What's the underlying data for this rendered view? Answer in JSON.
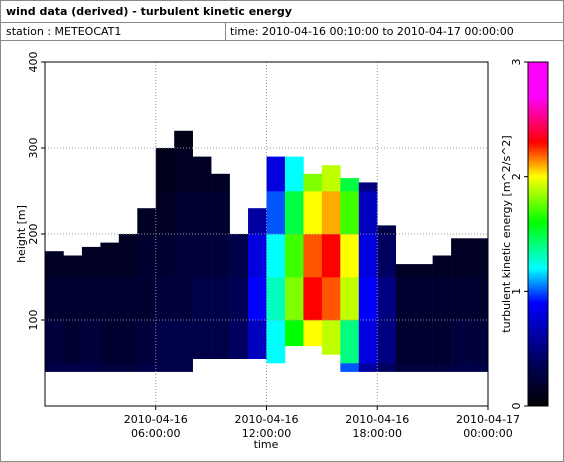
{
  "chart_data": {
    "type": "heatmap",
    "title": "wind data (derived) - turbulent kinetic energy",
    "station": "station : METEOCAT1",
    "time_range": "time: 2010-04-16 00:10:00 to 2010-04-17 00:00:00",
    "xlabel": "time",
    "ylabel": "height [m]",
    "colorbar_label": "turbulent kinetic energy [m^2/s^2]",
    "x": [
      0,
      1,
      2,
      3,
      4,
      5,
      6,
      7,
      8,
      9,
      10,
      11,
      12,
      13,
      14,
      15,
      16,
      17,
      18,
      19,
      20,
      21,
      22,
      23
    ],
    "bottom": [
      40,
      40,
      40,
      40,
      40,
      40,
      40,
      40,
      55,
      55,
      55,
      55,
      50,
      70,
      70,
      60,
      40,
      40,
      40,
      40,
      40,
      40,
      40,
      40
    ],
    "top": [
      180,
      175,
      185,
      190,
      200,
      230,
      300,
      320,
      290,
      270,
      200,
      230,
      290,
      290,
      270,
      280,
      265,
      260,
      210,
      165,
      165,
      175,
      195,
      195
    ],
    "rows": [
      0,
      50,
      100,
      150,
      200,
      250,
      300,
      350,
      400
    ],
    "values": [
      [
        0.3,
        0.25,
        0.2,
        0.15,
        null,
        null,
        null,
        null
      ],
      [
        0.3,
        0.2,
        0.2,
        0.15,
        null,
        null,
        null,
        null
      ],
      [
        0.3,
        0.25,
        0.2,
        0.15,
        null,
        null,
        null,
        null
      ],
      [
        0.25,
        0.2,
        0.2,
        0.15,
        null,
        null,
        null,
        null
      ],
      [
        0.25,
        0.2,
        0.2,
        0.15,
        null,
        null,
        null,
        null
      ],
      [
        0.3,
        0.25,
        0.2,
        0.2,
        0.15,
        null,
        null,
        null
      ],
      [
        0.3,
        0.3,
        0.25,
        0.2,
        0.15,
        0.1,
        null,
        null
      ],
      [
        0.3,
        0.3,
        0.25,
        0.25,
        0.2,
        0.15,
        0.1,
        null
      ],
      [
        0.3,
        0.3,
        0.3,
        0.25,
        0.2,
        0.15,
        null,
        null
      ],
      [
        0.35,
        0.3,
        0.3,
        0.25,
        0.2,
        0.15,
        null,
        null
      ],
      [
        0.4,
        0.4,
        0.35,
        0.3,
        null,
        null,
        null,
        null
      ],
      [
        0.6,
        0.7,
        0.9,
        0.8,
        0.6,
        null,
        null,
        null
      ],
      [
        0.9,
        1.2,
        1.3,
        1.2,
        1.0,
        0.8,
        null,
        null
      ],
      [
        1.3,
        1.6,
        1.8,
        1.7,
        1.5,
        1.2,
        null,
        null
      ],
      [
        1.5,
        2.0,
        2.3,
        2.2,
        2.0,
        1.8,
        null,
        null
      ],
      [
        1.4,
        1.9,
        2.2,
        2.3,
        2.1,
        1.9,
        null,
        null
      ],
      [
        1.0,
        1.4,
        1.9,
        2.0,
        1.7,
        1.5,
        null,
        null
      ],
      [
        0.6,
        0.8,
        0.9,
        0.8,
        0.7,
        0.5,
        null,
        null
      ],
      [
        0.4,
        0.5,
        0.5,
        0.4,
        0.3,
        null,
        null,
        null
      ],
      [
        0.25,
        0.2,
        0.2,
        0.15,
        null,
        null,
        null,
        null
      ],
      [
        0.25,
        0.2,
        0.2,
        0.15,
        null,
        null,
        null,
        null
      ],
      [
        0.25,
        0.2,
        0.2,
        0.15,
        null,
        null,
        null,
        null
      ],
      [
        0.3,
        0.25,
        0.2,
        0.15,
        null,
        null,
        null,
        null
      ],
      [
        0.3,
        0.25,
        0.2,
        0.15,
        null,
        null,
        null,
        null
      ]
    ],
    "xlim": [
      0,
      24
    ],
    "xticks": [
      {
        "value": 6,
        "label": "2010-04-16 06:00:00"
      },
      {
        "value": 12,
        "label": "2010-04-16 12:00:00"
      },
      {
        "value": 18,
        "label": "2010-04-16 18:00:00"
      },
      {
        "value": 24,
        "label": "2010-04-17 00:00:00"
      }
    ],
    "ylim": [
      0,
      400
    ],
    "yticks": [
      100,
      200,
      300,
      400
    ],
    "zlim": [
      0,
      3
    ],
    "zticks": [
      0,
      1,
      2,
      3
    ],
    "colormap": [
      [
        0,
        "#000000"
      ],
      [
        0.4,
        "#000060"
      ],
      [
        0.9,
        "#0000ff"
      ],
      [
        1.2,
        "#00ffff"
      ],
      [
        1.6,
        "#00ff00"
      ],
      [
        2.0,
        "#ffff00"
      ],
      [
        2.3,
        "#ff0000"
      ],
      [
        2.7,
        "#ff00ff"
      ],
      [
        3,
        "#ff00ff"
      ]
    ],
    "grid": true
  }
}
